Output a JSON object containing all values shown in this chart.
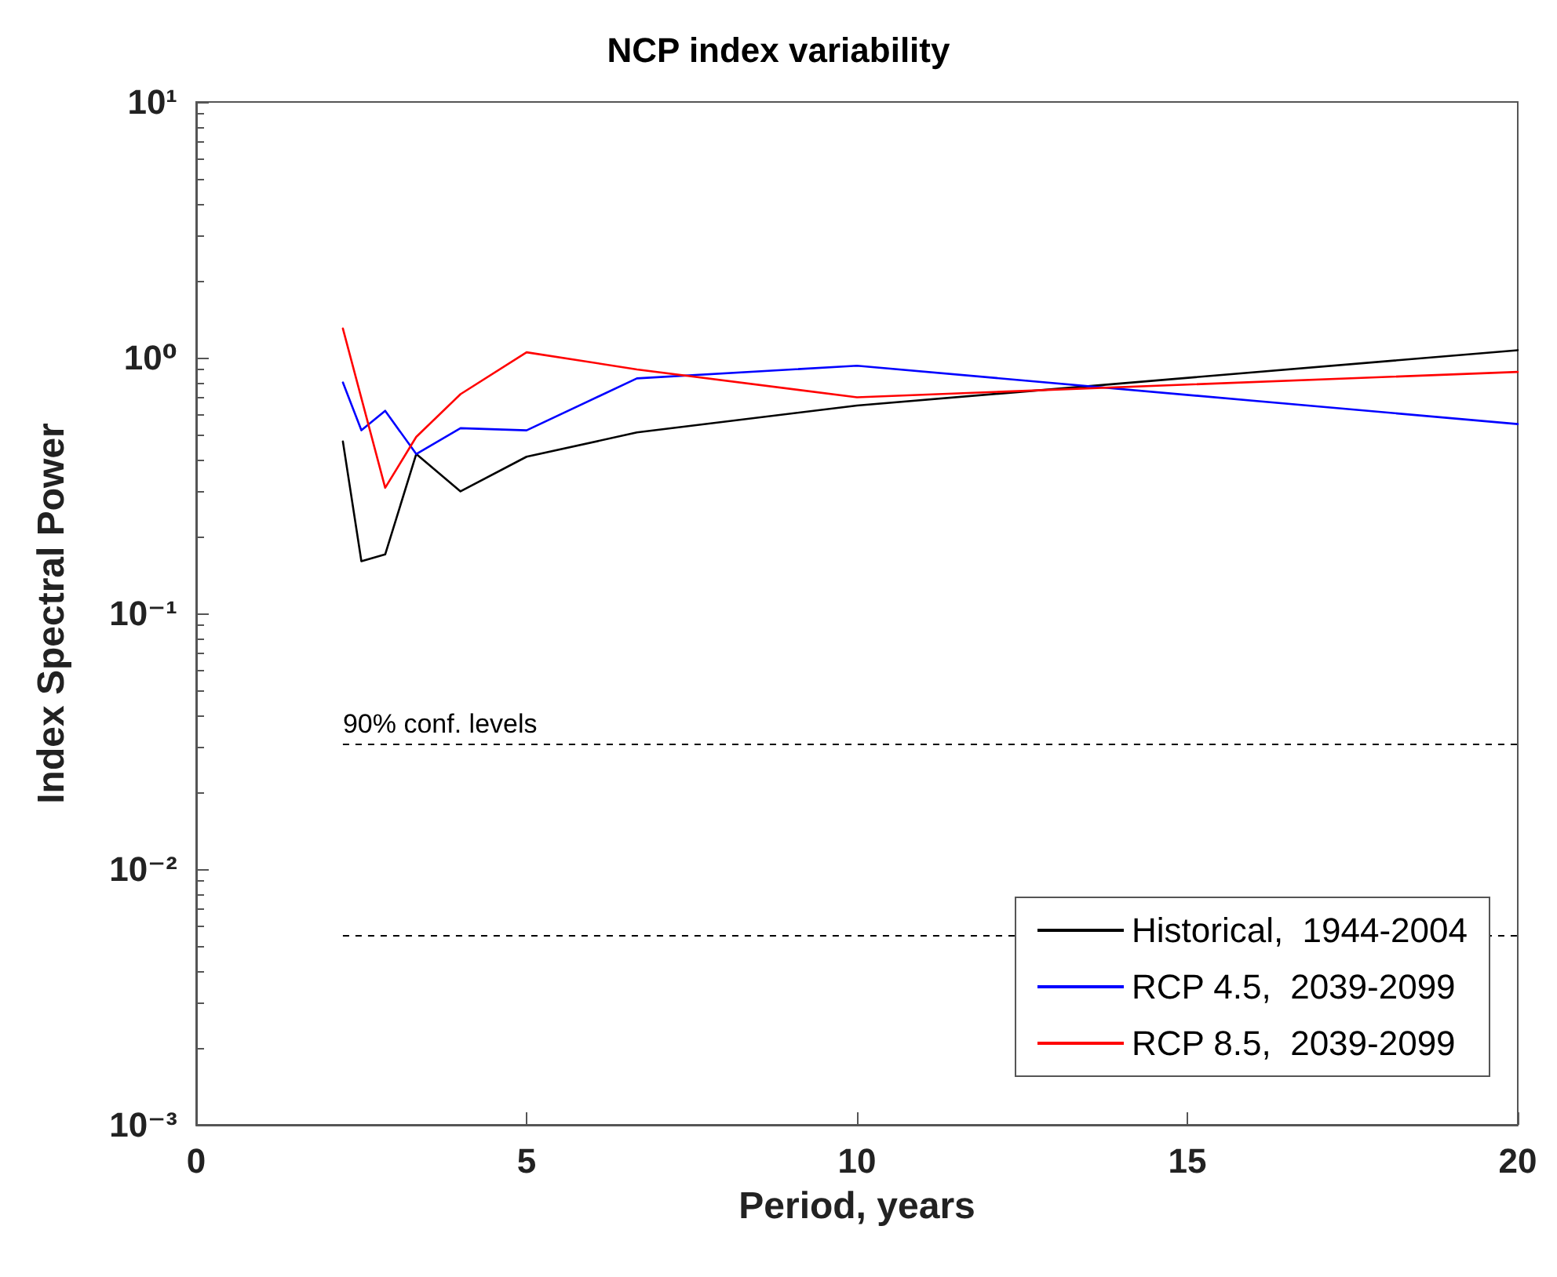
{
  "chart_data": {
    "type": "line",
    "title": "NCP index variability",
    "xlabel": "Period, years",
    "ylabel": "Index Spectral Power",
    "x": [
      2.22,
      2.5,
      2.86,
      3.33,
      4,
      5,
      6.67,
      10,
      20
    ],
    "series": [
      {
        "name": "Historical,  1944-2004",
        "color": "#000000",
        "values": [
          0.47,
          0.16,
          0.17,
          0.42,
          0.3,
          0.41,
          0.51,
          0.65,
          1.07
        ]
      },
      {
        "name": "RCP 4.5,  2039-2099",
        "color": "#0000ff",
        "values": [
          0.8,
          0.52,
          0.62,
          0.42,
          0.53,
          0.52,
          0.83,
          0.93,
          0.55
        ]
      },
      {
        "name": "RCP 8.5,  2039-2099",
        "color": "#ff0000",
        "x": [
          2.22,
          2.86,
          3.33,
          4,
          5,
          6.67,
          10,
          20
        ],
        "values": [
          1.3,
          0.31,
          0.49,
          0.72,
          1.05,
          0.9,
          0.7,
          0.88
        ]
      }
    ],
    "log": "y",
    "xlim": [
      0,
      20
    ],
    "xticks": [
      0,
      5,
      10,
      15,
      20
    ],
    "ylim": [
      0.001,
      10
    ],
    "yticks": [
      {
        "value": 0.001,
        "label": "10⁻³"
      },
      {
        "value": 0.01,
        "label": "10⁻²"
      },
      {
        "value": 0.1,
        "label": "10⁻¹"
      },
      {
        "value": 1,
        "label": "10⁰"
      },
      {
        "value": 10,
        "label": "10¹"
      }
    ],
    "ref_lines": [
      {
        "axis": "y",
        "value": 0.031,
        "label": "90% conf. levels",
        "color": "#000000",
        "line_style": "dashed"
      },
      {
        "axis": "y",
        "value": 0.0055,
        "label": null,
        "color": "#000000",
        "line_style": "dashed"
      }
    ],
    "legend": "bottom right",
    "grid": false,
    "marker": "none",
    "line_style": "solid"
  }
}
